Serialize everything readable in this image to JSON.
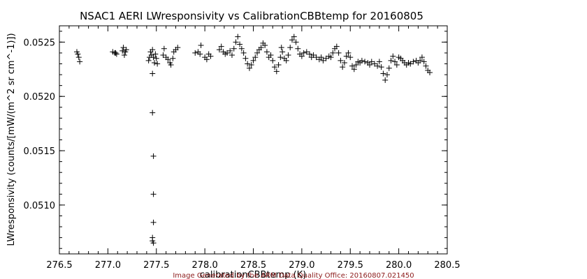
{
  "chart_data": {
    "type": "scatter",
    "title": "NSAC1 AERI LWresponsivity vs CalibrationCBBtemp for 20160805",
    "xlabel": "calibrationCBBtemp (K)",
    "ylabel": "LWresponsivity (counts/[mW/(m^2 sr cm^-1)])",
    "xlim": [
      276.5,
      280.5
    ],
    "ylim": [
      0.05055,
      0.05265
    ],
    "x_ticks": [
      276.5,
      277.0,
      277.5,
      278.0,
      278.5,
      279.0,
      279.5,
      280.0,
      280.5
    ],
    "x_tick_labels": [
      "276.5",
      "277.0",
      "277.5",
      "278.0",
      "278.5",
      "279.0",
      "279.5",
      "280.0",
      "280.5"
    ],
    "y_ticks": [
      0.051,
      0.0515,
      0.052,
      0.0525
    ],
    "y_tick_labels": [
      "0.0510",
      "0.0515",
      "0.0520",
      "0.0525"
    ],
    "marker": "plus",
    "marker_color": "#000000",
    "grid": false,
    "points": [
      [
        276.68,
        0.05241
      ],
      [
        276.69,
        0.05239
      ],
      [
        276.7,
        0.05236
      ],
      [
        276.71,
        0.05232
      ],
      [
        277.05,
        0.05241
      ],
      [
        277.07,
        0.0524
      ],
      [
        277.09,
        0.05239
      ],
      [
        277.08,
        0.0524
      ],
      [
        277.15,
        0.05242
      ],
      [
        277.16,
        0.05245
      ],
      [
        277.17,
        0.05238
      ],
      [
        277.18,
        0.05241
      ],
      [
        277.19,
        0.05243
      ],
      [
        277.42,
        0.05233
      ],
      [
        277.43,
        0.05236
      ],
      [
        277.44,
        0.05241
      ],
      [
        277.45,
        0.05238
      ],
      [
        277.46,
        0.05243
      ],
      [
        277.47,
        0.05236
      ],
      [
        277.48,
        0.05231
      ],
      [
        277.49,
        0.05239
      ],
      [
        277.5,
        0.05235
      ],
      [
        277.51,
        0.0523
      ],
      [
        277.46,
        0.05221
      ],
      [
        277.46,
        0.05185
      ],
      [
        277.47,
        0.05145
      ],
      [
        277.47,
        0.0511
      ],
      [
        277.47,
        0.05084
      ],
      [
        277.46,
        0.0507
      ],
      [
        277.47,
        0.05065
      ],
      [
        277.46,
        0.05067
      ],
      [
        277.57,
        0.05238
      ],
      [
        277.58,
        0.05244
      ],
      [
        277.6,
        0.05236
      ],
      [
        277.62,
        0.05234
      ],
      [
        277.64,
        0.05231
      ],
      [
        277.65,
        0.05229
      ],
      [
        277.67,
        0.05235
      ],
      [
        277.68,
        0.05241
      ],
      [
        277.7,
        0.05243
      ],
      [
        277.72,
        0.05245
      ],
      [
        277.9,
        0.0524
      ],
      [
        277.93,
        0.05241
      ],
      [
        277.95,
        0.05239
      ],
      [
        277.96,
        0.05247
      ],
      [
        278.0,
        0.05236
      ],
      [
        278.02,
        0.05234
      ],
      [
        278.04,
        0.05239
      ],
      [
        278.06,
        0.05237
      ],
      [
        278.15,
        0.05243
      ],
      [
        278.17,
        0.05246
      ],
      [
        278.19,
        0.05241
      ],
      [
        278.21,
        0.05239
      ],
      [
        278.23,
        0.0524
      ],
      [
        278.26,
        0.05242
      ],
      [
        278.28,
        0.05238
      ],
      [
        278.3,
        0.05244
      ],
      [
        278.32,
        0.0525
      ],
      [
        278.34,
        0.05255
      ],
      [
        278.36,
        0.05248
      ],
      [
        278.38,
        0.05244
      ],
      [
        278.4,
        0.0524
      ],
      [
        278.42,
        0.05235
      ],
      [
        278.44,
        0.0523
      ],
      [
        278.46,
        0.05226
      ],
      [
        278.48,
        0.05229
      ],
      [
        278.5,
        0.05233
      ],
      [
        278.52,
        0.05236
      ],
      [
        278.54,
        0.0524
      ],
      [
        278.56,
        0.05243
      ],
      [
        278.58,
        0.05245
      ],
      [
        278.6,
        0.05249
      ],
      [
        278.62,
        0.05247
      ],
      [
        278.64,
        0.05241
      ],
      [
        278.66,
        0.05236
      ],
      [
        278.68,
        0.05238
      ],
      [
        278.7,
        0.05233
      ],
      [
        278.72,
        0.05227
      ],
      [
        278.74,
        0.05223
      ],
      [
        278.76,
        0.05229
      ],
      [
        278.78,
        0.05236
      ],
      [
        278.79,
        0.05245
      ],
      [
        278.8,
        0.05241
      ],
      [
        278.82,
        0.05235
      ],
      [
        278.84,
        0.05233
      ],
      [
        278.86,
        0.05238
      ],
      [
        278.88,
        0.05245
      ],
      [
        278.9,
        0.05252
      ],
      [
        278.92,
        0.05255
      ],
      [
        278.94,
        0.0525
      ],
      [
        278.96,
        0.05244
      ],
      [
        278.98,
        0.05239
      ],
      [
        279.0,
        0.05237
      ],
      [
        279.02,
        0.0524
      ],
      [
        279.05,
        0.05241
      ],
      [
        279.08,
        0.05239
      ],
      [
        279.1,
        0.05236
      ],
      [
        279.12,
        0.05238
      ],
      [
        279.15,
        0.05236
      ],
      [
        279.18,
        0.05234
      ],
      [
        279.2,
        0.05236
      ],
      [
        279.22,
        0.05233
      ],
      [
        279.25,
        0.05235
      ],
      [
        279.28,
        0.05237
      ],
      [
        279.3,
        0.05236
      ],
      [
        279.32,
        0.0524
      ],
      [
        279.34,
        0.05244
      ],
      [
        279.36,
        0.05246
      ],
      [
        279.38,
        0.0524
      ],
      [
        279.4,
        0.05233
      ],
      [
        279.42,
        0.05227
      ],
      [
        279.44,
        0.05231
      ],
      [
        279.46,
        0.05237
      ],
      [
        279.48,
        0.0524
      ],
      [
        279.5,
        0.05236
      ],
      [
        279.52,
        0.05228
      ],
      [
        279.54,
        0.05225
      ],
      [
        279.56,
        0.05229
      ],
      [
        279.58,
        0.05232
      ],
      [
        279.6,
        0.05231
      ],
      [
        279.62,
        0.05233
      ],
      [
        279.65,
        0.05232
      ],
      [
        279.68,
        0.05231
      ],
      [
        279.7,
        0.05229
      ],
      [
        279.72,
        0.05232
      ],
      [
        279.75,
        0.0523
      ],
      [
        279.78,
        0.05228
      ],
      [
        279.8,
        0.05232
      ],
      [
        279.82,
        0.05227
      ],
      [
        279.84,
        0.05221
      ],
      [
        279.86,
        0.05215
      ],
      [
        279.88,
        0.0522
      ],
      [
        279.9,
        0.05226
      ],
      [
        279.92,
        0.05233
      ],
      [
        279.94,
        0.05237
      ],
      [
        279.96,
        0.05232
      ],
      [
        279.98,
        0.05229
      ],
      [
        280.0,
        0.05236
      ],
      [
        280.02,
        0.05235
      ],
      [
        280.04,
        0.05233
      ],
      [
        280.06,
        0.05231
      ],
      [
        280.08,
        0.05229
      ],
      [
        280.1,
        0.05231
      ],
      [
        280.12,
        0.0523
      ],
      [
        280.15,
        0.05232
      ],
      [
        280.18,
        0.05233
      ],
      [
        280.2,
        0.05231
      ],
      [
        280.22,
        0.05233
      ],
      [
        280.24,
        0.05236
      ],
      [
        280.26,
        0.05232
      ],
      [
        280.28,
        0.05228
      ],
      [
        280.3,
        0.05224
      ],
      [
        280.32,
        0.05222
      ]
    ]
  },
  "credit": {
    "text": "Image Generated by the ARM Data Quality Office: 20160807.021450",
    "color": "#8b1a1a"
  }
}
